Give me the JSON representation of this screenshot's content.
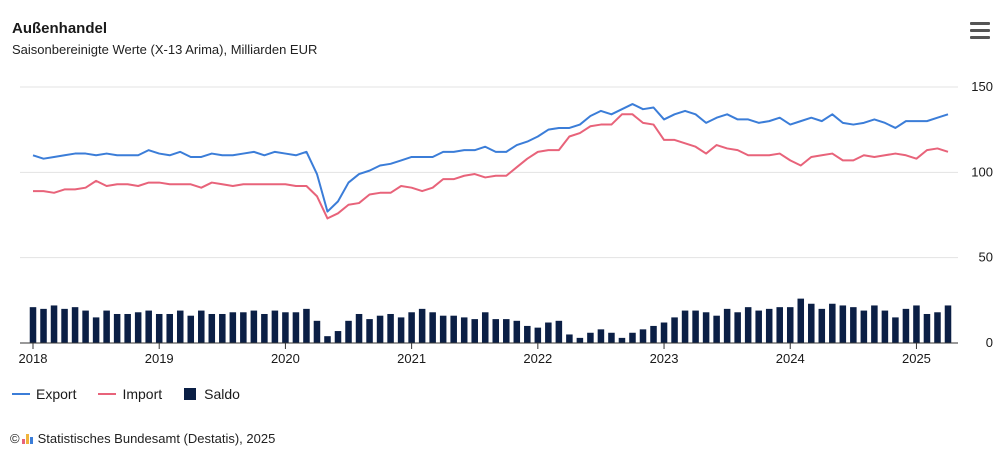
{
  "header": {
    "title": "Außenhandel",
    "subtitle": "Saisonbereinigte Werte (X-13 Arima), Milliarden EUR"
  },
  "menu_icon": "hamburger-menu-icon",
  "legend": [
    {
      "label": "Export",
      "color": "#3b7dd8",
      "shape": "line"
    },
    {
      "label": "Import",
      "color": "#e8637a",
      "shape": "line"
    },
    {
      "label": "Saldo",
      "color": "#0b1f45",
      "shape": "square"
    }
  ],
  "credit": {
    "copyright": "©",
    "text": "Statistisches Bundesamt (Destatis), 2025"
  },
  "chart_data": {
    "type": "line",
    "title": "Außenhandel",
    "subtitle": "Saisonbereinigte Werte (X-13 Arima), Milliarden EUR",
    "x_start": "2018-01",
    "x_end": "2025-03",
    "frequency": "monthly",
    "x_ticks": [
      "2018",
      "2019",
      "2020",
      "2021",
      "2022",
      "2023",
      "2024",
      "2025"
    ],
    "ylim": [
      0,
      150
    ],
    "y_ticks": [
      0,
      50,
      100,
      150
    ],
    "y_axis_position": "right",
    "grid": true,
    "legend_position": "bottom-left",
    "series": [
      {
        "name": "Export",
        "type": "line",
        "color": "#3b7dd8",
        "values": [
          110,
          108,
          109,
          110,
          111,
          111,
          110,
          111,
          110,
          110,
          110,
          113,
          111,
          110,
          112,
          109,
          109,
          111,
          110,
          110,
          111,
          112,
          110,
          112,
          111,
          110,
          112,
          99,
          77,
          83,
          94,
          99,
          101,
          104,
          105,
          107,
          109,
          109,
          109,
          112,
          112,
          113,
          113,
          115,
          112,
          112,
          116,
          118,
          121,
          125,
          126,
          126,
          128,
          133,
          136,
          134,
          137,
          140,
          137,
          138,
          131,
          134,
          136,
          134,
          129,
          132,
          134,
          131,
          131,
          129,
          130,
          132,
          128,
          130,
          132,
          130,
          134,
          129,
          128,
          129,
          131,
          129,
          126,
          130,
          130,
          130,
          132,
          134
        ]
      },
      {
        "name": "Import",
        "type": "line",
        "color": "#e8637a",
        "values": [
          89,
          89,
          88,
          90,
          90,
          91,
          95,
          92,
          93,
          93,
          92,
          94,
          94,
          93,
          93,
          93,
          91,
          94,
          93,
          92,
          93,
          93,
          93,
          93,
          93,
          92,
          92,
          86,
          73,
          76,
          81,
          82,
          87,
          88,
          88,
          92,
          91,
          89,
          91,
          96,
          96,
          98,
          99,
          97,
          98,
          98,
          103,
          108,
          112,
          113,
          113,
          121,
          123,
          127,
          128,
          128,
          134,
          134,
          129,
          128,
          119,
          119,
          117,
          115,
          111,
          116,
          114,
          113,
          110,
          110,
          110,
          111,
          107,
          104,
          109,
          110,
          111,
          107,
          107,
          110,
          109,
          110,
          111,
          110,
          108,
          113,
          114,
          112
        ]
      },
      {
        "name": "Saldo",
        "type": "bar",
        "color": "#0b1f45",
        "values": [
          21,
          20,
          22,
          20,
          21,
          19,
          15,
          19,
          17,
          17,
          18,
          19,
          17,
          17,
          19,
          16,
          19,
          17,
          17,
          18,
          18,
          19,
          17,
          19,
          18,
          18,
          20,
          13,
          4,
          7,
          13,
          17,
          14,
          16,
          17,
          15,
          18,
          20,
          18,
          16,
          16,
          15,
          14,
          18,
          14,
          14,
          13,
          10,
          9,
          12,
          13,
          5,
          3,
          6,
          8,
          6,
          3,
          6,
          8,
          10,
          12,
          15,
          19,
          19,
          18,
          16,
          20,
          18,
          21,
          19,
          20,
          21,
          21,
          26,
          23,
          20,
          23,
          22,
          21,
          19,
          22,
          19,
          15,
          20,
          22,
          17,
          18,
          22
        ]
      }
    ]
  }
}
